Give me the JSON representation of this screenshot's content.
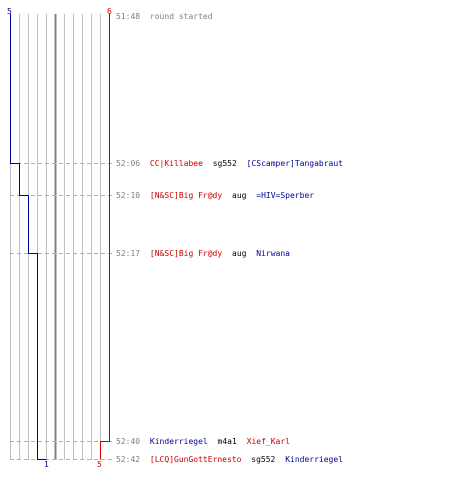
{
  "scores": {
    "blue_start": "5",
    "red_start": "6",
    "blue_end": "1",
    "red_end": "5"
  },
  "events": [
    {
      "time": "51:48",
      "message": "round started"
    },
    {
      "time": "52:06",
      "attacker": "CC|Killabee",
      "weapon": "sg552",
      "victim": "[CScamper]Tangabraut"
    },
    {
      "time": "52:10",
      "attacker": "[N&SC]Big Fr@dy",
      "weapon": "aug",
      "victim": "=HIV=Sperber"
    },
    {
      "time": "52:17",
      "attacker": "[N&SC]Big Fr@dy",
      "weapon": "aug",
      "victim": "Nirwana"
    },
    {
      "time": "52:40",
      "attacker": "Kinderriegel",
      "weapon": "m4a1",
      "victim": "Xief_Karl"
    },
    {
      "time": "52:42",
      "attacker": "[LCQ]GunGottErnesto",
      "weapon": "sg552",
      "victim": "Kinderriegel"
    }
  ],
  "colors": {
    "red_team": "#cc0000",
    "blue_team": "#000099",
    "grid": "#c0c0c0",
    "grid_center": "#808080",
    "time": "#808080"
  }
}
